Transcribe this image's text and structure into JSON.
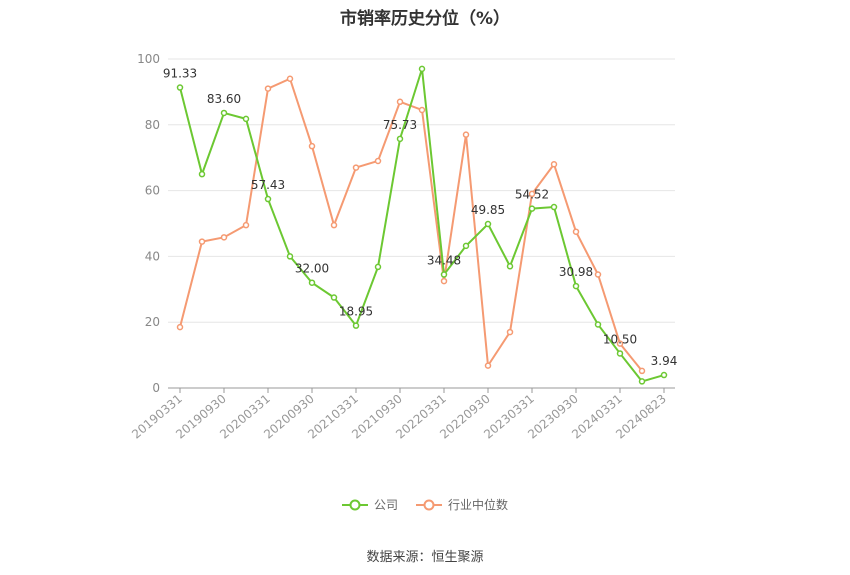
{
  "title": "市销率历史分位（%）",
  "legend": {
    "company": "公司",
    "industry": "行业中位数"
  },
  "source": "数据来源：恒生聚源",
  "colors": {
    "company": "#6cc832",
    "industry": "#f59a72"
  },
  "chart_data": {
    "type": "line",
    "ylim": [
      0,
      100
    ],
    "yticks": [
      0,
      20,
      40,
      60,
      80,
      100
    ],
    "x_tick_labels": [
      "20190331",
      "20190930",
      "20200331",
      "20200930",
      "20210331",
      "20210930",
      "20220331",
      "20220930",
      "20230331",
      "20230930",
      "20240331",
      "20240823"
    ],
    "x_tick_index": [
      0,
      2,
      4,
      6,
      8,
      10,
      12,
      14,
      16,
      18,
      20,
      22
    ],
    "series": [
      {
        "name": "公司",
        "values": [
          91.33,
          65,
          83.6,
          81.8,
          57.43,
          40,
          32.0,
          27.5,
          18.95,
          36.8,
          75.73,
          97,
          34.48,
          43.2,
          49.85,
          37,
          54.52,
          55,
          30.98,
          19.3,
          10.5,
          2.0,
          3.94
        ],
        "labels": {
          "0": "91.33",
          "2": "83.60",
          "4": "57.43",
          "6": "32.00",
          "8": "18.95",
          "10": "75.73",
          "12": "34.48",
          "14": "49.85",
          "16": "54.52",
          "18": "30.98",
          "20": "10.50",
          "22": "3.94"
        }
      },
      {
        "name": "行业中位数",
        "values": [
          18.5,
          44.5,
          45.8,
          49.5,
          91,
          94,
          73.5,
          49.5,
          67,
          69,
          87,
          84.5,
          32.5,
          77,
          6.8,
          17,
          59,
          68,
          47.5,
          34.5,
          13.5,
          5.2
        ]
      }
    ]
  }
}
